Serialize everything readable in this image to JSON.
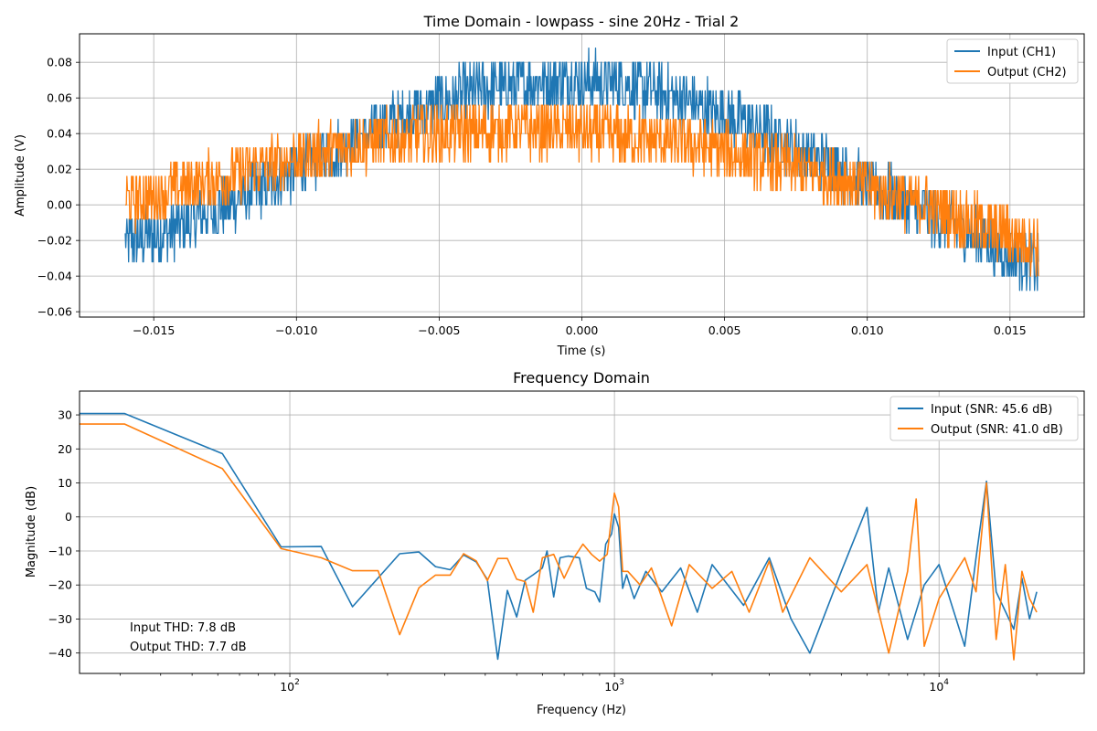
{
  "chart_data": [
    {
      "type": "line",
      "title": "Time Domain - lowpass - sine 20Hz - Trial 2",
      "xlabel": "Time (s)",
      "ylabel": "Amplitude (V)",
      "xlim": [
        -0.0176,
        0.0176
      ],
      "ylim": [
        -0.063,
        0.096
      ],
      "x_scale": "linear",
      "grid": true,
      "legend_position": "top-right",
      "x_ticks": [
        -0.015,
        -0.01,
        -0.005,
        0.0,
        0.005,
        0.01,
        0.015
      ],
      "x_tick_labels": [
        "−0.015",
        "−0.010",
        "−0.005",
        "0.000",
        "0.005",
        "0.010",
        "0.015"
      ],
      "y_ticks": [
        -0.06,
        -0.04,
        -0.02,
        0.0,
        0.02,
        0.04,
        0.06,
        0.08
      ],
      "y_tick_labels": [
        "−0.06",
        "−0.04",
        "−0.02",
        "0.00",
        "0.02",
        "0.04",
        "0.06",
        "0.08"
      ],
      "series": [
        {
          "name": "Input (CH1)",
          "color": "#1f77b4",
          "x": [
            -0.016,
            -0.015,
            -0.014,
            -0.013,
            -0.012,
            -0.011,
            -0.01,
            -0.009,
            -0.008,
            -0.007,
            -0.006,
            -0.005,
            -0.004,
            -0.003,
            -0.002,
            -0.001,
            0.0,
            0.001,
            0.002,
            0.003,
            0.004,
            0.005,
            0.006,
            0.007,
            0.008,
            0.009,
            0.01,
            0.011,
            0.012,
            0.013,
            0.014,
            0.015,
            0.016
          ],
          "y": [
            -0.02,
            -0.018,
            -0.012,
            -0.004,
            0.004,
            0.012,
            0.02,
            0.028,
            0.036,
            0.044,
            0.051,
            0.057,
            0.062,
            0.066,
            0.068,
            0.07,
            0.07,
            0.069,
            0.066,
            0.062,
            0.057,
            0.051,
            0.044,
            0.036,
            0.028,
            0.02,
            0.012,
            0.004,
            -0.004,
            -0.012,
            -0.02,
            -0.028,
            -0.035
          ],
          "noise_band": 0.016
        },
        {
          "name": "Output (CH2)",
          "color": "#ff7f0e",
          "x": [
            -0.016,
            -0.015,
            -0.014,
            -0.013,
            -0.012,
            -0.011,
            -0.01,
            -0.009,
            -0.008,
            -0.007,
            -0.006,
            -0.005,
            -0.004,
            -0.003,
            -0.002,
            -0.001,
            0.0,
            0.001,
            0.002,
            0.003,
            0.004,
            0.005,
            0.006,
            0.007,
            0.008,
            0.009,
            0.01,
            0.011,
            0.012,
            0.013,
            0.014,
            0.015,
            0.016
          ],
          "y": [
            0.002,
            0.005,
            0.01,
            0.014,
            0.018,
            0.022,
            0.026,
            0.03,
            0.033,
            0.036,
            0.038,
            0.04,
            0.041,
            0.042,
            0.042,
            0.042,
            0.041,
            0.04,
            0.038,
            0.036,
            0.033,
            0.03,
            0.026,
            0.022,
            0.018,
            0.014,
            0.01,
            0.005,
            0.0,
            -0.006,
            -0.012,
            -0.017,
            -0.022
          ],
          "noise_band": 0.016
        }
      ]
    },
    {
      "type": "line",
      "title": "Frequency Domain",
      "xlabel": "Frequency (Hz)",
      "ylabel": "Magnitude (dB)",
      "x_scale": "log",
      "xlim": [
        22.5,
        28000
      ],
      "ylim": [
        -46,
        37
      ],
      "grid": true,
      "legend_position": "top-right",
      "x_ticks": [
        100,
        1000,
        10000
      ],
      "x_tick_labels": [
        "10",
        "10",
        "10"
      ],
      "x_tick_exponents": [
        "2",
        "3",
        "4"
      ],
      "y_ticks": [
        -40,
        -30,
        -20,
        -10,
        0,
        10,
        20,
        30
      ],
      "y_tick_labels": [
        "−40",
        "−30",
        "−20",
        "−10",
        "0",
        "10",
        "20",
        "30"
      ],
      "annotations": [
        "Input THD: 7.8 dB",
        "Output THD: 7.7 dB"
      ],
      "series": [
        {
          "name": "Input (SNR: 45.6 dB)",
          "color": "#1f77b4",
          "x": [
            22.5,
            31,
            62,
            94,
            125,
            156,
            218,
            250,
            281,
            312,
            343,
            375,
            406,
            437,
            468,
            500,
            531,
            562,
            600,
            620,
            650,
            680,
            720,
            780,
            820,
            870,
            900,
            940,
            980,
            1000,
            1030,
            1060,
            1090,
            1150,
            1250,
            1400,
            1600,
            1800,
            2000,
            2500,
            3000,
            3500,
            4000,
            5000,
            6000,
            6500,
            7000,
            8000,
            9000,
            10000,
            12000,
            13000,
            14000,
            15000,
            17000,
            18000,
            19000,
            20000
          ],
          "y": [
            30.4,
            30.4,
            18.6,
            -8.8,
            -8.7,
            -26.4,
            -10.8,
            -10.3,
            -14.6,
            -15.5,
            -11.2,
            -13.2,
            -18.4,
            -41.8,
            -21.6,
            -29.4,
            -18.6,
            -17.0,
            -15.0,
            -10.0,
            -23.5,
            -12.0,
            -11.5,
            -12.0,
            -21.0,
            -22.0,
            -25.0,
            -8.0,
            -5.0,
            0.9,
            -3.0,
            -21.0,
            -17.0,
            -24.0,
            -16.0,
            -22.0,
            -15.0,
            -28.0,
            -14.0,
            -26.0,
            -12.0,
            -30.0,
            -40.0,
            -16.0,
            2.8,
            -28.0,
            -15.0,
            -36.0,
            -20.0,
            -14.0,
            -38.0,
            -12.0,
            10.5,
            -22.0,
            -33.0,
            -18.0,
            -30.0,
            -22.0
          ]
        },
        {
          "name": "Output (SNR: 41.0 dB)",
          "color": "#ff7f0e",
          "x": [
            22.5,
            31,
            62,
            94,
            125,
            156,
            187,
            218,
            250,
            281,
            312,
            343,
            375,
            406,
            437,
            468,
            500,
            531,
            562,
            600,
            650,
            700,
            750,
            800,
            850,
            900,
            950,
            1000,
            1030,
            1060,
            1100,
            1200,
            1300,
            1500,
            1700,
            2000,
            2300,
            2600,
            3000,
            3300,
            4000,
            5000,
            6000,
            7000,
            8000,
            8500,
            9000,
            10000,
            12000,
            13000,
            14000,
            15000,
            16000,
            17000,
            18000,
            19000,
            20000
          ],
          "y": [
            27.3,
            27.3,
            14.2,
            -9.3,
            -12.0,
            -15.8,
            -15.8,
            -34.6,
            -20.8,
            -17.1,
            -17.1,
            -10.8,
            -12.9,
            -18.7,
            -12.2,
            -12.2,
            -18.3,
            -19.0,
            -28.0,
            -12.0,
            -11.0,
            -18.0,
            -12.0,
            -8.0,
            -11.0,
            -13.0,
            -11.0,
            7.0,
            3.0,
            -16.0,
            -16.0,
            -20.0,
            -15.0,
            -32.0,
            -14.0,
            -21.0,
            -16.0,
            -28.0,
            -13.0,
            -28.0,
            -12.0,
            -22.0,
            -14.0,
            -40.0,
            -16.0,
            5.3,
            -38.0,
            -24.0,
            -12.0,
            -22.0,
            10.0,
            -36.0,
            -14.0,
            -42.0,
            -16.0,
            -24.0,
            -28.0
          ]
        }
      ]
    }
  ]
}
